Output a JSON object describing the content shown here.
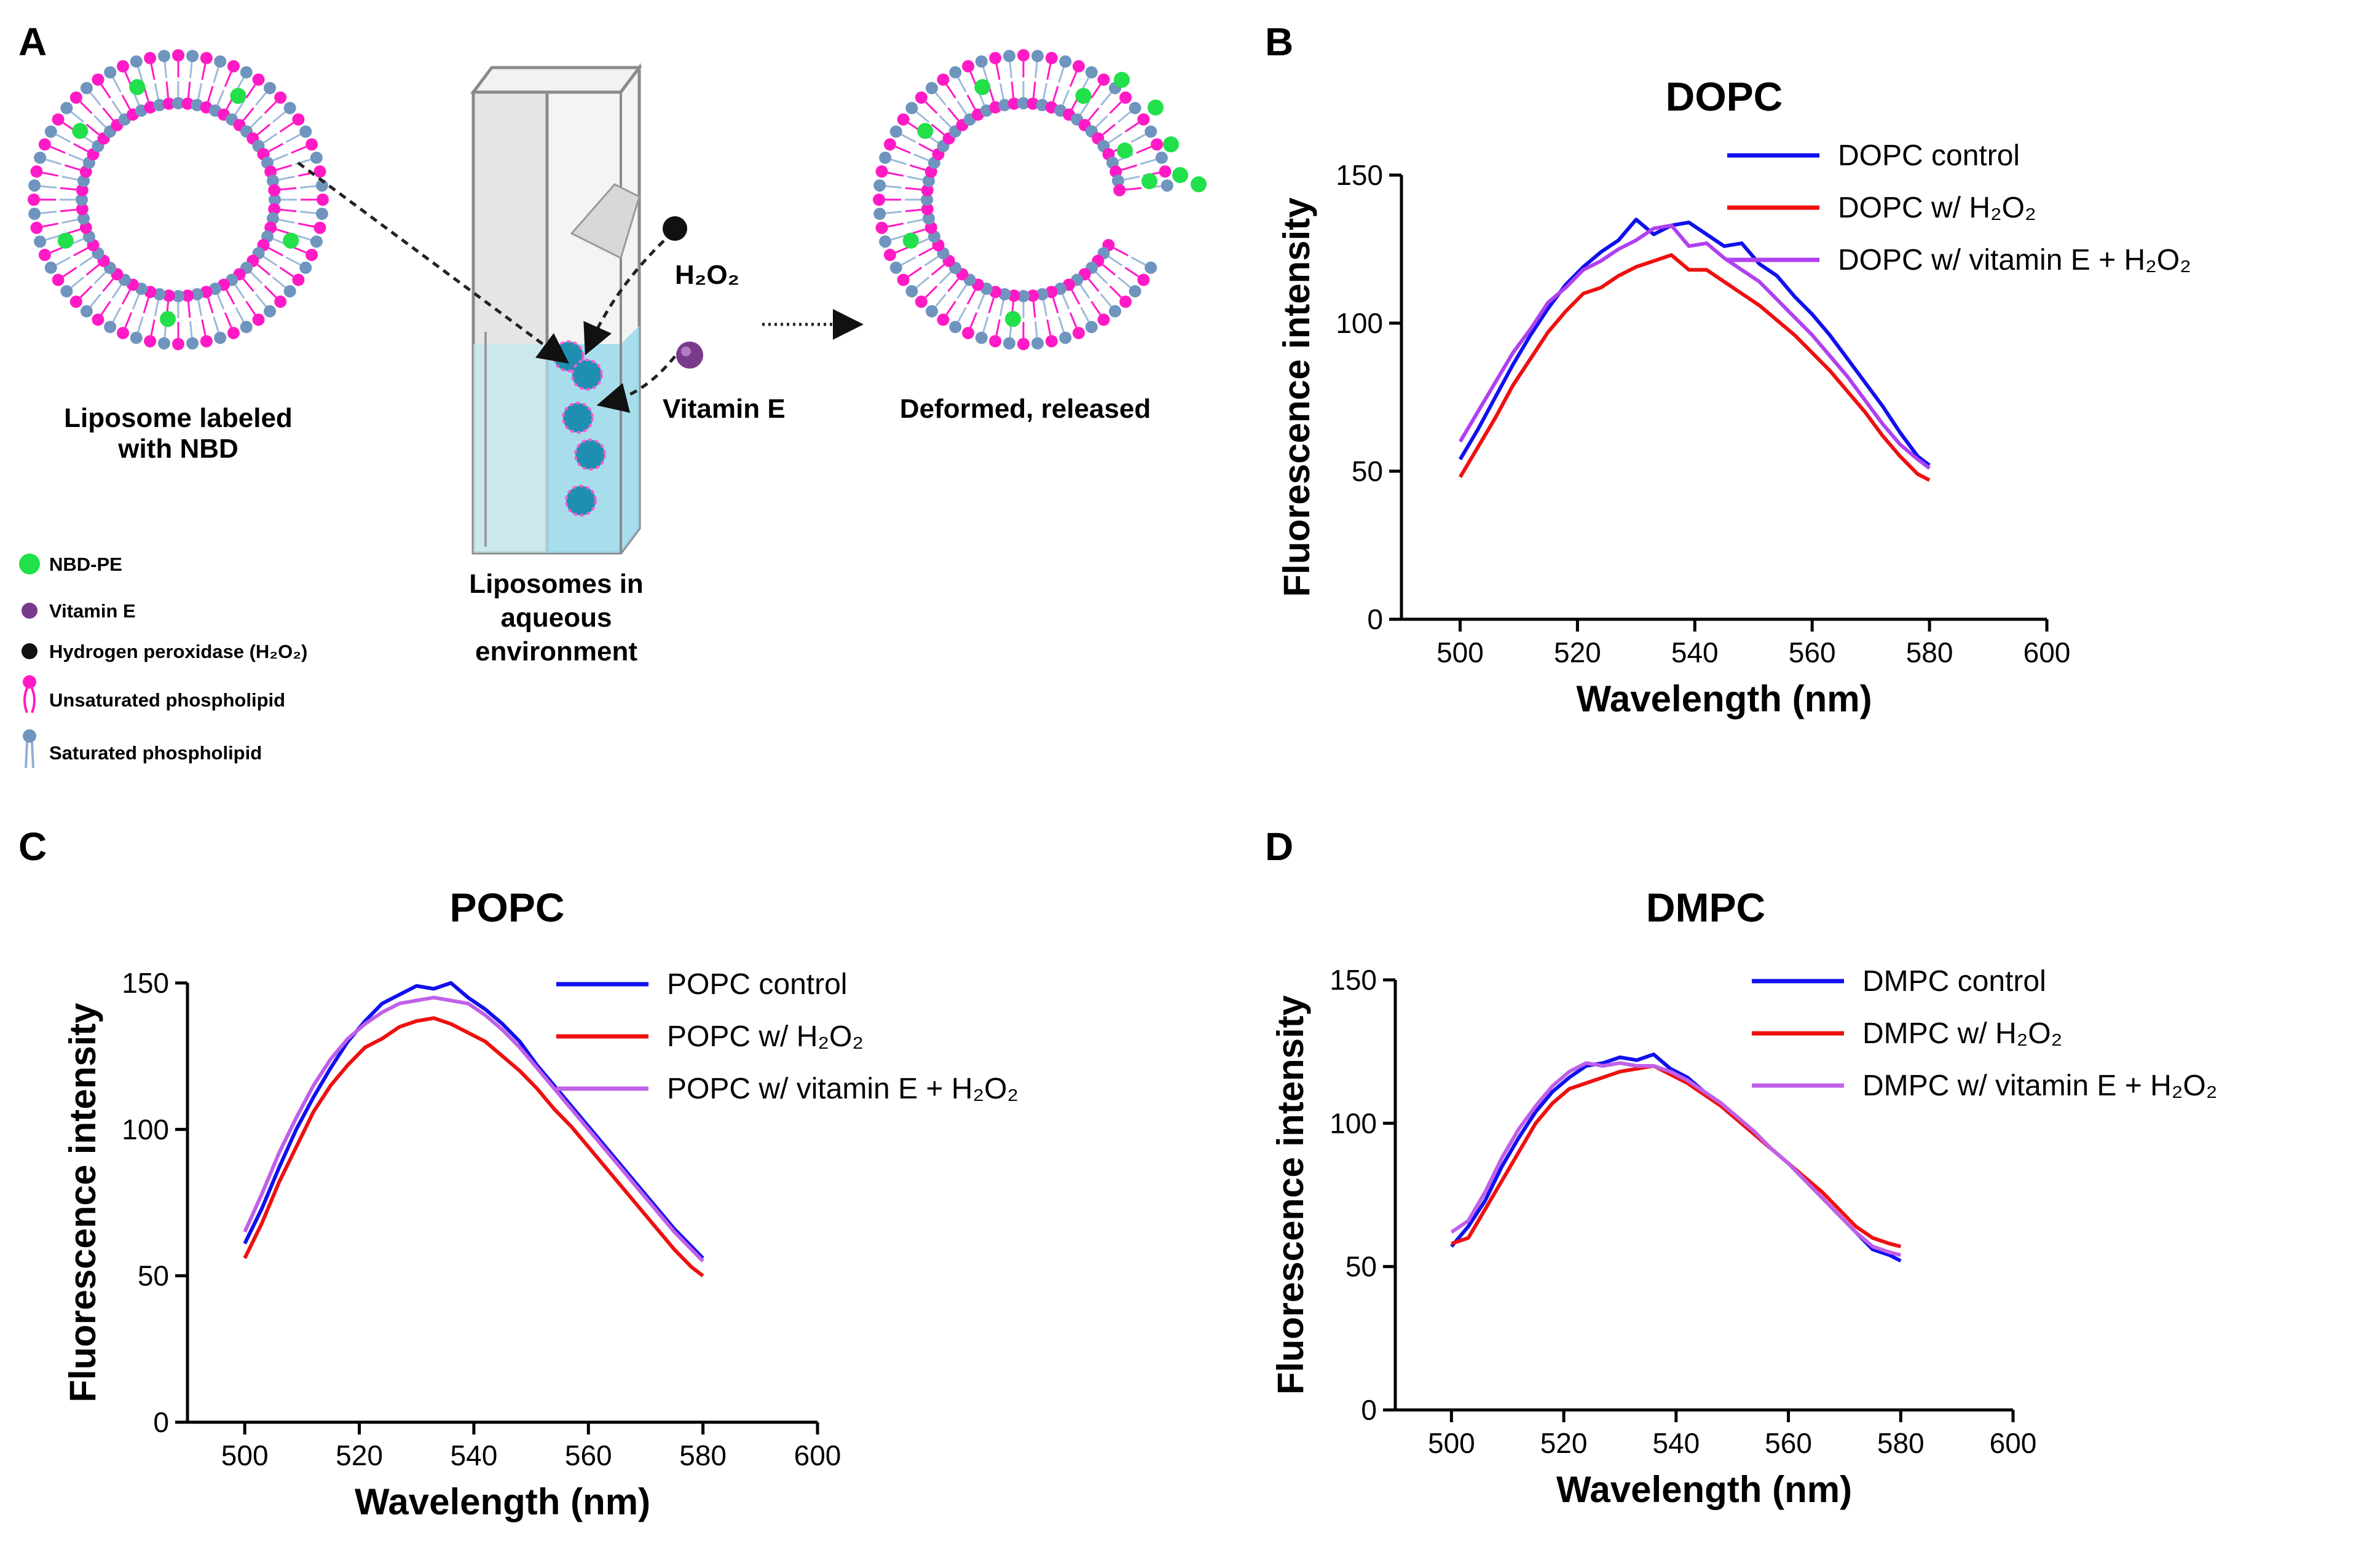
{
  "panel_labels": [
    "A",
    "B",
    "C",
    "D"
  ],
  "schematic": {
    "labels": {
      "liposome_line1": "Liposome labeled",
      "liposome_line2": "with NBD",
      "h2o2": "H₂O₂",
      "vitamin_e": "Vitamin E",
      "deformed": "Deformed, released",
      "cuvette_line1": "Liposomes in",
      "cuvette_line2": "aqueous",
      "cuvette_line3": "environment"
    },
    "key": [
      {
        "icon": "green-dot",
        "label": "NBD-PE"
      },
      {
        "icon": "purple-dot",
        "label": "Vitamin E"
      },
      {
        "icon": "black-dot",
        "label": "Hydrogen peroxidase (H₂O₂)"
      },
      {
        "icon": "magenta-lipid",
        "label": "Unsaturated phospholipid"
      },
      {
        "icon": "blue-lipid",
        "label": "Saturated phospholipid"
      }
    ],
    "colors": {
      "nbd": "#22e04a",
      "vitamin_e": "#7a3a8c",
      "h2o2": "#111111",
      "unsaturated": "#ff1ac6",
      "saturated": "#6f95be",
      "water": "#9ad9ea"
    }
  },
  "chart_data": [
    {
      "id": "B",
      "type": "line",
      "title": "DOPC",
      "xlabel": "Wavelength (nm)",
      "ylabel": "Fluorescence intensity",
      "xlim": [
        490,
        600
      ],
      "ylim": [
        0,
        150
      ],
      "xticks": [
        500,
        520,
        540,
        560,
        580,
        600
      ],
      "yticks": [
        0,
        50,
        100,
        150
      ],
      "legend_position": "top-right",
      "series": [
        {
          "name": "DOPC control",
          "color": "#1010ee",
          "x": [
            500,
            503,
            506,
            509,
            512,
            515,
            518,
            521,
            524,
            527,
            530,
            533,
            536,
            539,
            542,
            545,
            548,
            551,
            554,
            557,
            560,
            563,
            566,
            569,
            572,
            575,
            578,
            580
          ],
          "y": [
            54,
            64,
            75,
            86,
            96,
            105,
            113,
            119,
            124,
            128,
            135,
            130,
            133,
            134,
            130,
            126,
            127,
            120,
            116,
            109,
            103,
            96,
            88,
            80,
            72,
            63,
            55,
            52
          ]
        },
        {
          "name": "DOPC w/ H₂O₂",
          "color": "#ee1010",
          "x": [
            500,
            503,
            506,
            509,
            512,
            515,
            518,
            521,
            524,
            527,
            530,
            533,
            536,
            539,
            542,
            545,
            548,
            551,
            554,
            557,
            560,
            563,
            566,
            569,
            572,
            575,
            578,
            580
          ],
          "y": [
            48,
            58,
            68,
            79,
            88,
            97,
            104,
            110,
            112,
            116,
            119,
            121,
            123,
            118,
            118,
            114,
            110,
            106,
            101,
            96,
            90,
            84,
            77,
            70,
            62,
            55,
            49,
            47
          ]
        },
        {
          "name": "DOPC w/  vitamin E + H₂O₂",
          "color": "#b040f0",
          "x": [
            500,
            503,
            506,
            509,
            512,
            515,
            518,
            521,
            524,
            527,
            530,
            533,
            536,
            539,
            542,
            545,
            548,
            551,
            554,
            557,
            560,
            563,
            566,
            569,
            572,
            575,
            578,
            580
          ],
          "y": [
            60,
            70,
            80,
            90,
            98,
            107,
            112,
            118,
            121,
            125,
            128,
            132,
            133,
            126,
            127,
            122,
            118,
            114,
            108,
            102,
            96,
            89,
            82,
            74,
            66,
            59,
            54,
            51
          ]
        }
      ]
    },
    {
      "id": "C",
      "type": "line",
      "title": "POPC",
      "xlabel": "Wavelength (nm)",
      "ylabel": "Fluorescence intensity",
      "xlim": [
        490,
        600
      ],
      "ylim": [
        0,
        150
      ],
      "xticks": [
        500,
        520,
        540,
        560,
        580,
        600
      ],
      "yticks": [
        0,
        50,
        100,
        150
      ],
      "legend_position": "top-right",
      "series": [
        {
          "name": "POPC control",
          "color": "#1010ee",
          "x": [
            500,
            503,
            506,
            509,
            512,
            515,
            518,
            521,
            524,
            527,
            530,
            533,
            536,
            539,
            542,
            545,
            548,
            551,
            554,
            557,
            560,
            563,
            566,
            569,
            572,
            575,
            578,
            580
          ],
          "y": [
            61,
            73,
            87,
            100,
            111,
            121,
            130,
            137,
            143,
            146,
            149,
            148,
            150,
            145,
            141,
            136,
            130,
            122,
            115,
            108,
            101,
            94,
            87,
            80,
            73,
            66,
            60,
            56
          ]
        },
        {
          "name": "POPC w/  H₂O₂",
          "color": "#ee1010",
          "x": [
            500,
            503,
            506,
            509,
            512,
            515,
            518,
            521,
            524,
            527,
            530,
            533,
            536,
            539,
            542,
            545,
            548,
            551,
            554,
            557,
            560,
            563,
            566,
            569,
            572,
            575,
            578,
            580
          ],
          "y": [
            56,
            68,
            82,
            94,
            106,
            115,
            122,
            128,
            131,
            135,
            137,
            138,
            136,
            133,
            130,
            125,
            120,
            114,
            107,
            101,
            94,
            87,
            80,
            73,
            66,
            59,
            53,
            50
          ]
        },
        {
          "name": "POPC w/ vitamin E + H₂O₂",
          "color": "#c060e8",
          "x": [
            500,
            503,
            506,
            509,
            512,
            515,
            518,
            521,
            524,
            527,
            530,
            533,
            536,
            539,
            542,
            545,
            548,
            551,
            554,
            557,
            560,
            563,
            566,
            569,
            572,
            575,
            578,
            580
          ],
          "y": [
            65,
            78,
            92,
            104,
            115,
            124,
            131,
            136,
            140,
            143,
            144,
            145,
            144,
            143,
            139,
            134,
            128,
            121,
            114,
            107,
            100,
            93,
            86,
            79,
            72,
            65,
            59,
            55
          ]
        }
      ]
    },
    {
      "id": "D",
      "type": "line",
      "title": "DMPC",
      "xlabel": "Wavelength (nm)",
      "ylabel": "Fluorescence intensity",
      "xlim": [
        490,
        600
      ],
      "ylim": [
        0,
        150
      ],
      "xticks": [
        500,
        520,
        540,
        560,
        580,
        600
      ],
      "yticks": [
        0,
        50,
        100,
        150
      ],
      "legend_position": "top-right",
      "series": [
        {
          "name": "DMPC control",
          "color": "#1010ee",
          "x": [
            500,
            503,
            506,
            509,
            512,
            515,
            518,
            521,
            524,
            527,
            530,
            533,
            536,
            539,
            542,
            545,
            548,
            551,
            554,
            557,
            560,
            563,
            566,
            569,
            572,
            575,
            578,
            580
          ],
          "y": [
            57,
            64,
            73,
            85,
            95,
            104,
            111,
            116,
            120,
            121,
            123,
            122,
            124,
            119,
            116,
            111,
            107,
            102,
            96,
            91,
            86,
            80,
            74,
            68,
            62,
            56,
            54,
            52
          ]
        },
        {
          "name": "DMPC w/ H₂O₂",
          "color": "#ee1010",
          "x": [
            500,
            503,
            506,
            509,
            512,
            515,
            518,
            521,
            524,
            527,
            530,
            533,
            536,
            539,
            542,
            545,
            548,
            551,
            554,
            557,
            560,
            563,
            566,
            569,
            572,
            575,
            578,
            580
          ],
          "y": [
            58,
            60,
            70,
            80,
            90,
            100,
            107,
            112,
            114,
            116,
            118,
            119,
            120,
            117,
            114,
            110,
            106,
            101,
            96,
            91,
            86,
            81,
            76,
            70,
            64,
            60,
            58,
            57
          ]
        },
        {
          "name": "DMPC w/ vitamin E + H₂O₂",
          "color": "#c060e8",
          "x": [
            500,
            503,
            506,
            509,
            512,
            515,
            518,
            521,
            524,
            527,
            530,
            533,
            536,
            539,
            542,
            545,
            548,
            551,
            554,
            557,
            560,
            563,
            566,
            569,
            572,
            575,
            578,
            580
          ],
          "y": [
            62,
            66,
            76,
            88,
            98,
            106,
            113,
            118,
            121,
            120,
            121,
            120,
            120,
            118,
            115,
            111,
            107,
            102,
            97,
            91,
            86,
            80,
            74,
            68,
            62,
            57,
            55,
            54
          ]
        }
      ]
    }
  ]
}
